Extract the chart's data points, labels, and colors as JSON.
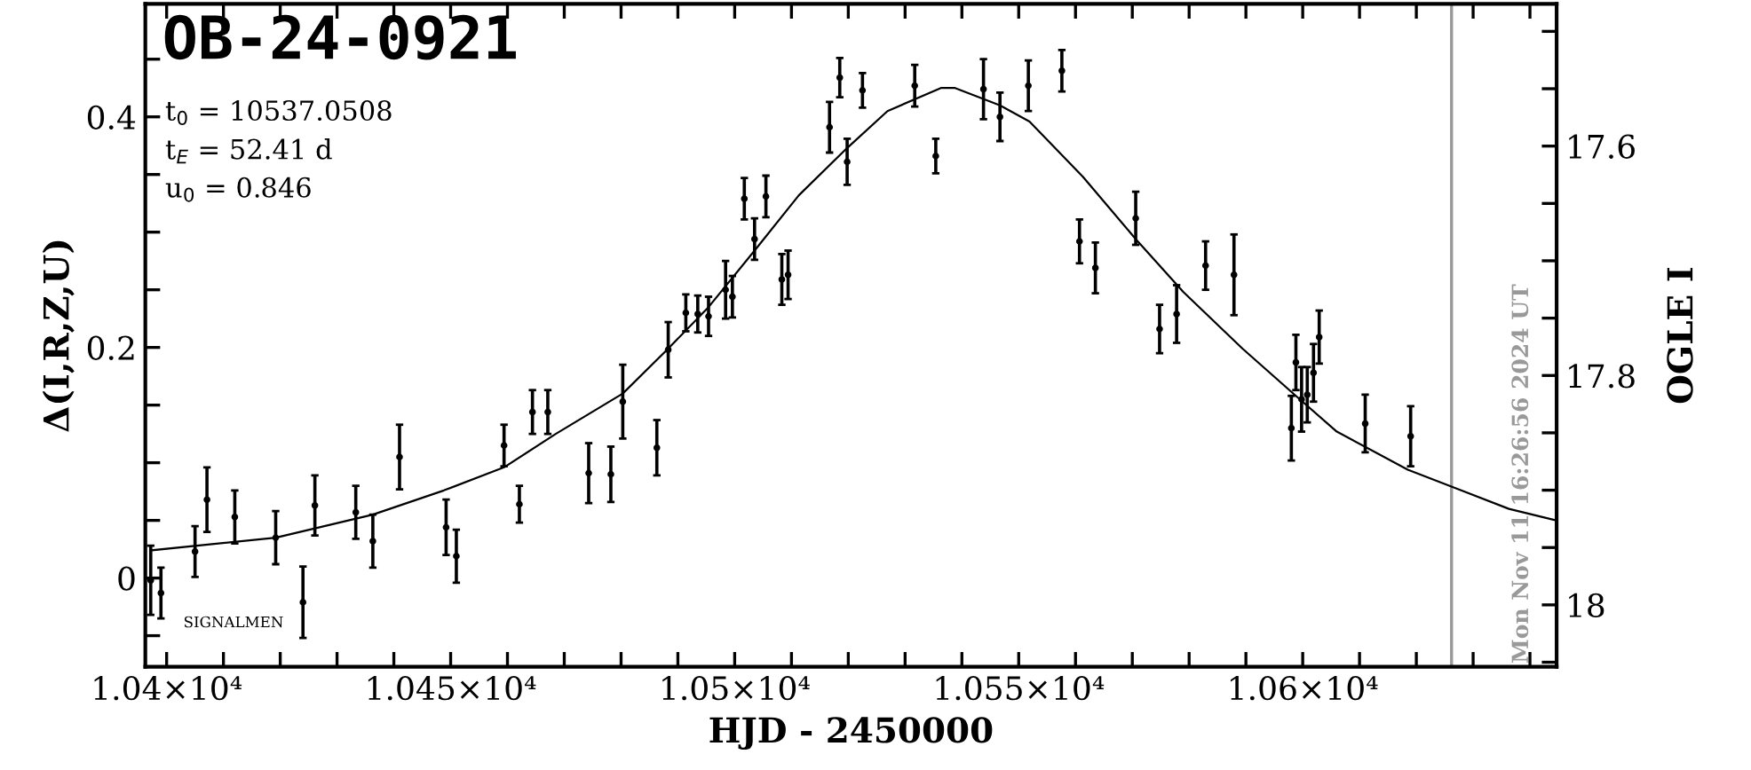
{
  "chart_data": {
    "type": "scatter",
    "title": "OB-24-0921",
    "xlabel": "HJD - 2450000",
    "ylabel": "Δ(I,R,Z,U)",
    "y2label": "OGLE I",
    "annotations": [
      "t$_{0}$ = 10537.0508",
      "t$_{E}$ = 52.41 d",
      "u$_{0}$ = 0.846",
      "SIGNALMEN",
      "Mon Nov 11 16:26:56 2024 UT"
    ],
    "xlim": [
      10396.25,
      10644.7
    ],
    "ylim": [
      -0.077,
      0.498
    ],
    "y2lim": [
      18.054,
      17.476
    ],
    "xticks": [
      {
        "value": 10400,
        "label": "1.04×10⁴"
      },
      {
        "value": 10410,
        "label": null
      },
      {
        "value": 10420,
        "label": null
      },
      {
        "value": 10430,
        "label": null
      },
      {
        "value": 10440,
        "label": null
      },
      {
        "value": 10450,
        "label": "1.045×10⁴"
      },
      {
        "value": 10460,
        "label": null
      },
      {
        "value": 10470,
        "label": null
      },
      {
        "value": 10480,
        "label": null
      },
      {
        "value": 10490,
        "label": null
      },
      {
        "value": 10500,
        "label": "1.05×10⁴"
      },
      {
        "value": 10510,
        "label": null
      },
      {
        "value": 10520,
        "label": null
      },
      {
        "value": 10530,
        "label": null
      },
      {
        "value": 10540,
        "label": null
      },
      {
        "value": 10550,
        "label": "1.055×10⁴"
      },
      {
        "value": 10560,
        "label": null
      },
      {
        "value": 10570,
        "label": null
      },
      {
        "value": 10580,
        "label": null
      },
      {
        "value": 10590,
        "label": null
      },
      {
        "value": 10600,
        "label": "1.06×10⁴"
      },
      {
        "value": 10610,
        "label": null
      },
      {
        "value": 10620,
        "label": null
      },
      {
        "value": 10630,
        "label": null
      },
      {
        "value": 10640,
        "label": null
      }
    ],
    "yticks": [
      {
        "value": -0.05,
        "label": null
      },
      0,
      {
        "value": 0.05,
        "label": null
      },
      {
        "value": 0.1,
        "label": null
      },
      {
        "value": 0.15,
        "label": null
      },
      0.2,
      {
        "value": 0.25,
        "label": null
      },
      {
        "value": 0.3,
        "label": null
      },
      {
        "value": 0.35,
        "label": null
      },
      0.4,
      {
        "value": 0.45,
        "label": null
      }
    ],
    "y2ticks": [
      {
        "value": 17.5,
        "label": null
      },
      {
        "value": 17.55,
        "label": null
      },
      17.6,
      {
        "value": 17.65,
        "label": null
      },
      {
        "value": 17.7,
        "label": null
      },
      {
        "value": 17.75,
        "label": null
      },
      17.8,
      {
        "value": 17.85,
        "label": null
      },
      {
        "value": 17.9,
        "label": null
      },
      {
        "value": 17.95,
        "label": null
      },
      18,
      {
        "value": 18.05,
        "label": null
      }
    ],
    "grid": false,
    "ref_lines": [
      {
        "axis": "x",
        "value": 10626.2,
        "color": "#999999"
      }
    ],
    "series": [
      {
        "color": "#000000",
        "marker": "circle",
        "x": [
          10397.2,
          10399.0,
          10405.0,
          10407.1,
          10412.0,
          10419.2,
          10424.0,
          10426.1,
          10433.3,
          10436.3,
          10441.0,
          10449.2,
          10451.0,
          10459.4,
          10462.1,
          10464.4,
          10467.1,
          10474.3,
          10478.2,
          10480.3,
          10486.3,
          10488.3,
          10491.4,
          10493.5,
          10495.4,
          10498.4,
          10499.6,
          10501.7,
          10503.5,
          10505.5,
          10508.3,
          10509.4,
          10516.7,
          10518.5,
          10519.8,
          10522.5,
          10531.7,
          10535.4,
          10543.8,
          10546.7,
          10551.7,
          10557.6,
          10560.7,
          10563.5,
          10570.6,
          10574.8,
          10577.8,
          10582.9,
          10587.9,
          10598.0,
          10598.8,
          10599.8,
          10600.8,
          10601.9,
          10602.9,
          10611.0,
          10619.0
        ],
        "values": [
          -0.002,
          -0.013,
          0.023,
          0.068,
          0.053,
          0.035,
          -0.021,
          0.063,
          0.057,
          0.032,
          0.105,
          0.044,
          0.019,
          0.115,
          0.064,
          0.144,
          0.144,
          0.091,
          0.09,
          0.153,
          0.113,
          0.198,
          0.23,
          0.229,
          0.227,
          0.25,
          0.244,
          0.329,
          0.294,
          0.331,
          0.259,
          0.263,
          0.391,
          0.434,
          0.361,
          0.423,
          0.427,
          0.366,
          0.424,
          0.4,
          0.427,
          0.44,
          0.292,
          0.269,
          0.312,
          0.216,
          0.229,
          0.271,
          0.263,
          0.13,
          0.187,
          0.155,
          0.159,
          0.178,
          0.209,
          0.134,
          0.123
        ],
        "errors": [
          0.03,
          0.022,
          0.022,
          0.028,
          0.023,
          0.023,
          0.031,
          0.026,
          0.023,
          0.023,
          0.028,
          0.024,
          0.023,
          0.018,
          0.016,
          0.019,
          0.019,
          0.026,
          0.024,
          0.032,
          0.024,
          0.024,
          0.016,
          0.016,
          0.017,
          0.025,
          0.018,
          0.018,
          0.018,
          0.018,
          0.022,
          0.021,
          0.022,
          0.017,
          0.02,
          0.015,
          0.018,
          0.015,
          0.026,
          0.021,
          0.022,
          0.018,
          0.019,
          0.022,
          0.023,
          0.021,
          0.025,
          0.021,
          0.035,
          0.028,
          0.024,
          0.028,
          0.024,
          0.025,
          0.023,
          0.025,
          0.026
        ]
      },
      {
        "type": "line",
        "color": "#000000",
        "marker": "none",
        "line_style": "solid",
        "x": [
          10397.2,
          10419.2,
          10436.3,
          10448.8,
          10459.4,
          10468.5,
          10480.3,
          10488.3,
          10495.4,
          10503.5,
          10511.3,
          10519.8,
          10526.9,
          10536.3,
          10538.8,
          10546.7,
          10551.9,
          10561.3,
          10570.6,
          10579.0,
          10589.4,
          10598.8,
          10606.0,
          10618.5,
          10627.9,
          10636.3,
          10644.6
        ],
        "values": [
          0.024,
          0.035,
          0.055,
          0.076,
          0.096,
          0.125,
          0.16,
          0.199,
          0.235,
          0.284,
          0.332,
          0.373,
          0.405,
          0.425,
          0.425,
          0.41,
          0.396,
          0.348,
          0.294,
          0.248,
          0.199,
          0.158,
          0.127,
          0.094,
          0.076,
          0.06,
          0.05
        ]
      }
    ]
  }
}
